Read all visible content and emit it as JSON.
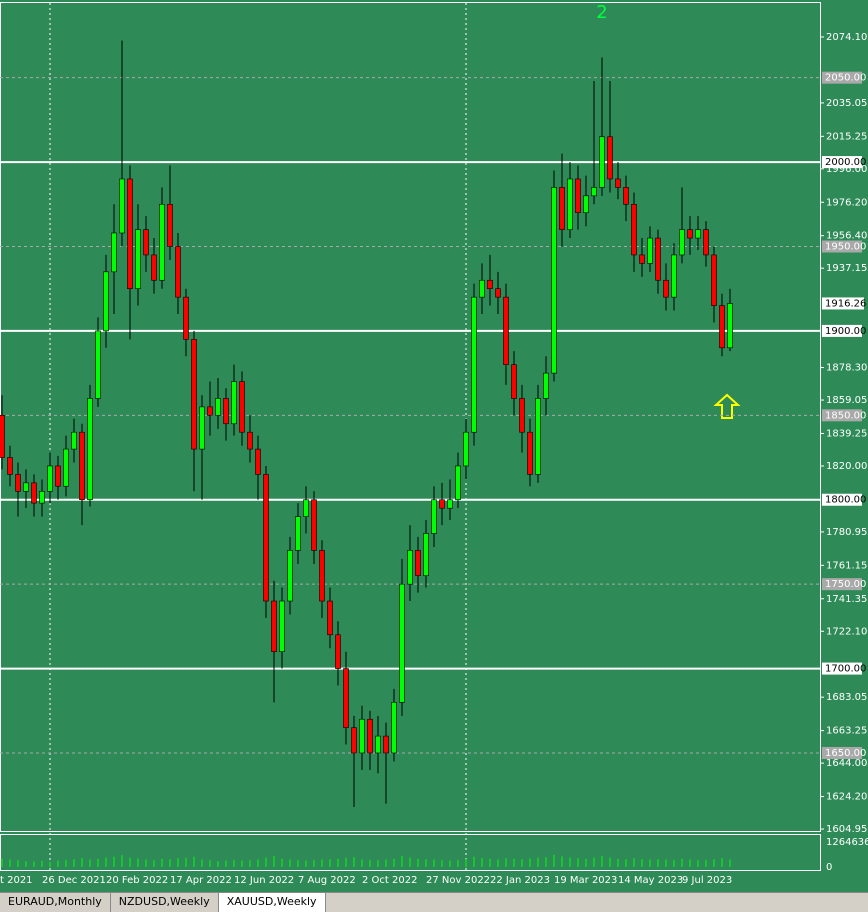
{
  "chart_data": {
    "type": "candlestick",
    "annotation": "2",
    "categories": [
      "t 2021",
      null,
      null,
      null,
      null,
      null,
      "26 Dec 2021",
      null,
      null,
      null,
      null,
      null,
      null,
      null,
      "20 Feb 2022",
      null,
      null,
      null,
      null,
      null,
      null,
      null,
      "17 Apr 2022",
      null,
      null,
      null,
      null,
      null,
      null,
      null,
      "12 Jun 2022",
      null,
      null,
      null,
      null,
      null,
      null,
      null,
      "7 Aug 2022",
      null,
      null,
      null,
      null,
      null,
      null,
      null,
      "2 Oct 2022",
      null,
      null,
      null,
      null,
      null,
      null,
      null,
      "27 Nov 2022",
      null,
      null,
      null,
      null,
      null,
      null,
      null,
      "22 Jan 2023",
      null,
      null,
      null,
      null,
      null,
      null,
      null,
      "19 Mar 2023",
      null,
      null,
      null,
      null,
      null,
      null,
      null,
      "14 May 2023",
      null,
      null,
      null,
      null,
      null,
      null,
      null,
      "9 Jul 2023",
      null,
      null,
      null,
      null,
      null
    ],
    "ohlc": [
      [
        1850,
        1862,
        1818,
        1825
      ],
      [
        1825,
        1832,
        1808,
        1815
      ],
      [
        1815,
        1822,
        1790,
        1805
      ],
      [
        1805,
        1818,
        1795,
        1810
      ],
      [
        1810,
        1815,
        1790,
        1798
      ],
      [
        1798,
        1812,
        1790,
        1805
      ],
      [
        1805,
        1828,
        1798,
        1820
      ],
      [
        1820,
        1826,
        1800,
        1808
      ],
      [
        1808,
        1838,
        1802,
        1830
      ],
      [
        1830,
        1848,
        1822,
        1840
      ],
      [
        1840,
        1845,
        1785,
        1800
      ],
      [
        1800,
        1868,
        1796,
        1860
      ],
      [
        1860,
        1908,
        1855,
        1900
      ],
      [
        1900,
        1945,
        1890,
        1935
      ],
      [
        1935,
        1975,
        1910,
        1958
      ],
      [
        1958,
        2072,
        1950,
        1990
      ],
      [
        1990,
        1998,
        1895,
        1925
      ],
      [
        1925,
        1975,
        1915,
        1960
      ],
      [
        1960,
        1968,
        1935,
        1945
      ],
      [
        1945,
        1955,
        1922,
        1930
      ],
      [
        1930,
        1985,
        1925,
        1975
      ],
      [
        1975,
        1998,
        1942,
        1950
      ],
      [
        1950,
        1958,
        1910,
        1920
      ],
      [
        1920,
        1925,
        1885,
        1895
      ],
      [
        1895,
        1900,
        1805,
        1830
      ],
      [
        1830,
        1862,
        1800,
        1855
      ],
      [
        1855,
        1870,
        1838,
        1850
      ],
      [
        1850,
        1872,
        1842,
        1860
      ],
      [
        1860,
        1866,
        1835,
        1845
      ],
      [
        1845,
        1880,
        1838,
        1870
      ],
      [
        1870,
        1876,
        1832,
        1840
      ],
      [
        1840,
        1850,
        1822,
        1830
      ],
      [
        1830,
        1838,
        1800,
        1815
      ],
      [
        1815,
        1820,
        1730,
        1740
      ],
      [
        1740,
        1752,
        1680,
        1710
      ],
      [
        1710,
        1748,
        1700,
        1740
      ],
      [
        1740,
        1778,
        1732,
        1770
      ],
      [
        1770,
        1798,
        1762,
        1790
      ],
      [
        1790,
        1808,
        1780,
        1800
      ],
      [
        1800,
        1805,
        1762,
        1770
      ],
      [
        1770,
        1776,
        1730,
        1740
      ],
      [
        1740,
        1748,
        1712,
        1720
      ],
      [
        1720,
        1728,
        1690,
        1700
      ],
      [
        1700,
        1710,
        1655,
        1665
      ],
      [
        1665,
        1672,
        1618,
        1650
      ],
      [
        1650,
        1678,
        1640,
        1670
      ],
      [
        1670,
        1675,
        1640,
        1650
      ],
      [
        1650,
        1672,
        1638,
        1660
      ],
      [
        1660,
        1668,
        1620,
        1650
      ],
      [
        1650,
        1688,
        1645,
        1680
      ],
      [
        1680,
        1765,
        1672,
        1750
      ],
      [
        1750,
        1785,
        1740,
        1770
      ],
      [
        1770,
        1778,
        1745,
        1755
      ],
      [
        1755,
        1788,
        1748,
        1780
      ],
      [
        1780,
        1808,
        1772,
        1800
      ],
      [
        1800,
        1810,
        1785,
        1795
      ],
      [
        1795,
        1812,
        1788,
        1800
      ],
      [
        1800,
        1828,
        1795,
        1820
      ],
      [
        1820,
        1848,
        1812,
        1840
      ],
      [
        1840,
        1928,
        1832,
        1920
      ],
      [
        1920,
        1940,
        1910,
        1930
      ],
      [
        1930,
        1945,
        1915,
        1925
      ],
      [
        1925,
        1935,
        1910,
        1920
      ],
      [
        1920,
        1928,
        1868,
        1880
      ],
      [
        1880,
        1888,
        1850,
        1860
      ],
      [
        1860,
        1868,
        1828,
        1840
      ],
      [
        1840,
        1848,
        1808,
        1815
      ],
      [
        1815,
        1868,
        1810,
        1860
      ],
      [
        1860,
        1885,
        1850,
        1875
      ],
      [
        1875,
        1995,
        1870,
        1985
      ],
      [
        1985,
        2005,
        1950,
        1960
      ],
      [
        1960,
        2000,
        1955,
        1990
      ],
      [
        1990,
        1998,
        1960,
        1970
      ],
      [
        1970,
        1992,
        1962,
        1980
      ],
      [
        1980,
        2048,
        1975,
        1985
      ],
      [
        1985,
        2062,
        1980,
        2015
      ],
      [
        2015,
        2048,
        1982,
        1990
      ],
      [
        1990,
        2000,
        1978,
        1985
      ],
      [
        1985,
        1992,
        1965,
        1975
      ],
      [
        1975,
        1982,
        1935,
        1945
      ],
      [
        1945,
        1955,
        1932,
        1940
      ],
      [
        1940,
        1962,
        1935,
        1955
      ],
      [
        1955,
        1960,
        1922,
        1930
      ],
      [
        1930,
        1940,
        1912,
        1920
      ],
      [
        1920,
        1952,
        1912,
        1945
      ],
      [
        1945,
        1985,
        1940,
        1960
      ],
      [
        1960,
        1968,
        1945,
        1955
      ],
      [
        1955,
        1968,
        1948,
        1960
      ],
      [
        1960,
        1965,
        1938,
        1945
      ],
      [
        1945,
        1950,
        1905,
        1915
      ],
      [
        1915,
        1922,
        1885,
        1890
      ],
      [
        1890,
        1925,
        1888,
        1916.26
      ]
    ],
    "up_color": "#00ff00",
    "down_color": "#ff0000",
    "wick_color": "#000000",
    "ylim": [
      1603.2,
      2096.0
    ],
    "yticks": [
      {
        "value": 2074.1,
        "label": "2074.10"
      },
      {
        "value": 2035.05,
        "label": "2035.05"
      },
      {
        "value": 2015.25,
        "label": "2015.25"
      },
      {
        "value": 1996,
        "label": "1996.00"
      },
      {
        "value": 1976.2,
        "label": "1976.20"
      },
      {
        "value": 1956.4,
        "label": "1956.40"
      },
      {
        "value": 1937.15,
        "label": "1937.15"
      },
      {
        "value": 1878.3,
        "label": "1878.30"
      },
      {
        "value": 1859.05,
        "label": "1859.05"
      },
      {
        "value": 1839.25,
        "label": "1839.25"
      },
      {
        "value": 1820,
        "label": "1820.00"
      },
      {
        "value": 1780.95,
        "label": "1780.95"
      },
      {
        "value": 1761.15,
        "label": "1761.15"
      },
      {
        "value": 1741.35,
        "label": "1741.35"
      },
      {
        "value": 1722.1,
        "label": "1722.10"
      },
      {
        "value": 1683.05,
        "label": "1683.05"
      },
      {
        "value": 1663.25,
        "label": "1663.25"
      },
      {
        "value": 1644,
        "label": "1644.00"
      },
      {
        "value": 1624.2,
        "label": "1624.20"
      },
      {
        "value": 1604.95,
        "label": "1604.95"
      }
    ],
    "major_levels": [
      {
        "value": 2000,
        "label": "2000.00"
      },
      {
        "value": 1900,
        "label": "1900.00"
      },
      {
        "value": 1800,
        "label": "1800.00"
      },
      {
        "value": 1700,
        "label": "1700.00"
      }
    ],
    "minor_levels": [
      {
        "value": 2050,
        "label": "2050.00"
      },
      {
        "value": 1950,
        "label": "1950.00"
      },
      {
        "value": 1850,
        "label": "1850.00"
      },
      {
        "value": 1750,
        "label": "1750.00"
      },
      {
        "value": 1650,
        "label": "1650.00"
      }
    ],
    "current_price": {
      "value": 1916.26,
      "label": "1916.26"
    },
    "volume": [
      420000,
      380000,
      350000,
      300000,
      280000,
      310000,
      260000,
      330000,
      360000,
      400000,
      450000,
      380000,
      420000,
      480000,
      520000,
      600000,
      470000,
      430000,
      380000,
      350000,
      410000,
      390000,
      440000,
      460000,
      520000,
      380000,
      340000,
      300000,
      320000,
      360000,
      330000,
      350000,
      380000,
      480000,
      560000,
      420000,
      380000,
      350000,
      330000,
      360000,
      380000,
      400000,
      420000,
      470000,
      500000,
      380000,
      360000,
      340000,
      380000,
      420000,
      560000,
      480000,
      420000,
      400000,
      380000,
      350000,
      330000,
      360000,
      400000,
      520000,
      450000,
      420000,
      380000,
      440000,
      420000,
      400000,
      430000,
      480000,
      500000,
      620000,
      540000,
      480000,
      440000,
      420000,
      480000,
      560000,
      480000,
      420000,
      400000,
      440000,
      400000,
      380000,
      400000,
      380000,
      360000,
      420000,
      380000,
      340000,
      360000,
      400000,
      440000,
      380000
    ],
    "volume_color": "#00ff00",
    "volume_ylim": [
      0,
      1264636
    ],
    "volume_yticks": [
      1264636,
      0
    ],
    "tabs": [
      "EURAUD,Monthly",
      "NZDUSD,Weekly",
      "XAUUSD,Weekly"
    ]
  }
}
